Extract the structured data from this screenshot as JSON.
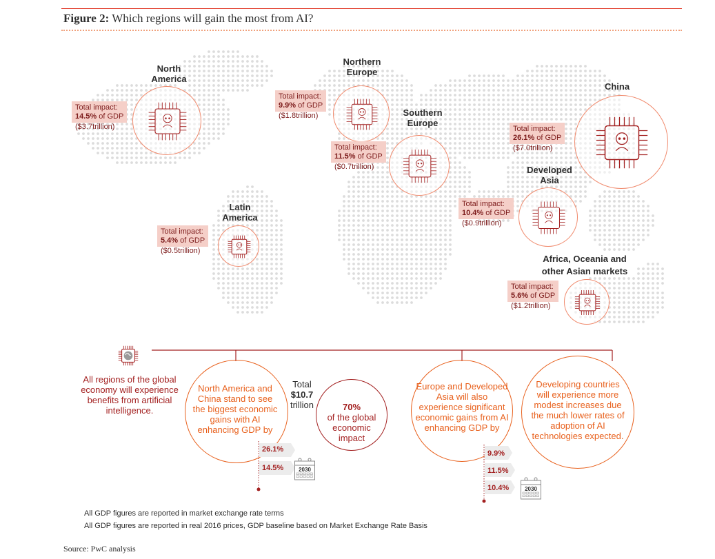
{
  "figure": {
    "label": "Figure 2:",
    "title": "Which regions will gain the most from AI?"
  },
  "regions": [
    {
      "id": "north-america",
      "name": "North America",
      "impact_label": "Total impact:",
      "gdp_pct": "14.5%",
      "gdp_suffix": "of GDP",
      "trillion": "($3.7trillion)"
    },
    {
      "id": "northern-europe",
      "name": "Northern Europe",
      "impact_label": "Total impact:",
      "gdp_pct": "9.9%",
      "gdp_suffix": "of GDP",
      "trillion": "($1.8trillion)"
    },
    {
      "id": "southern-europe",
      "name": "Southern Europe",
      "impact_label": "Total impact:",
      "gdp_pct": "11.5%",
      "gdp_suffix": "of GDP",
      "trillion": "($0.7trillion)"
    },
    {
      "id": "china",
      "name": "China",
      "impact_label": "Total impact:",
      "gdp_pct": "26.1%",
      "gdp_suffix": "of GDP",
      "trillion": "($7.0trillion)"
    },
    {
      "id": "developed-asia",
      "name": "Developed Asia",
      "impact_label": "Total impact:",
      "gdp_pct": "10.4%",
      "gdp_suffix": "of GDP",
      "trillion": "($0.9trillion)"
    },
    {
      "id": "latin-america",
      "name": "Latin America",
      "impact_label": "Total impact:",
      "gdp_pct": "5.4%",
      "gdp_suffix": "of GDP",
      "trillion": "($0.5trillion)"
    },
    {
      "id": "africa-oceania",
      "name": "Africa, Oceania and other Asian markets",
      "impact_label": "Total impact:",
      "gdp_pct": "5.6%",
      "gdp_suffix": "of GDP",
      "trillion": "($1.2trillion)"
    }
  ],
  "summary": {
    "all_regions": "All regions of the global economy will experience benefits from artificial intelligence.",
    "na_china": "North America and China stand to see the biggest economic gains with AI enhancing GDP by",
    "total_label": "Total",
    "total_value": "$10.7",
    "total_unit": "trillion",
    "share_pct": "70%",
    "share_text": "of the global economic impact",
    "europe_asia": "Europe and Developed Asia will also experience significant economic gains from AI enhancing GDP by",
    "developing": "Developing countries will experience more modest increases due the much lower rates of adoption of AI technologies expected.",
    "bars_left": [
      "26.1%",
      "14.5%"
    ],
    "bars_right": [
      "9.9%",
      "11.5%",
      "10.4%"
    ],
    "year": "2030"
  },
  "notes": [
    "All GDP figures are reported in market exchange rate terms",
    "All GDP figures are reported in real 2016 prices, GDP baseline based on Market Exchange Rate Basis"
  ],
  "source": "Source: PwC analysis",
  "colors": {
    "accent": "#e0301e",
    "maroon": "#a32020",
    "orange": "#e8601c",
    "box": "#f5cfc8"
  }
}
